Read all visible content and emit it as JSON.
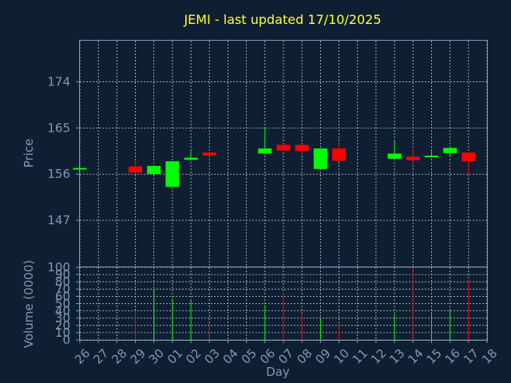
{
  "title": "JEMI - last updated 17/10/2025",
  "colors": {
    "background": "#0f1f33",
    "up": "#00ff00",
    "down": "#ff0000",
    "axis": "#7f99b2",
    "title": "#ffff33"
  },
  "chart_data": {
    "type": "candlestick",
    "title": "JEMI - last updated 17/10/2025",
    "xlabel": "Day",
    "price_axis": {
      "label": "Price",
      "range": [
        138,
        182
      ],
      "ticks": [
        147,
        156,
        165,
        174
      ]
    },
    "volume_axis": {
      "label": "Volume (0000)",
      "range": [
        0,
        100
      ],
      "ticks": [
        0,
        10,
        20,
        30,
        40,
        50,
        60,
        70,
        80,
        90,
        100
      ],
      "tick_labels": [
        "0",
        "10",
        "20",
        "30",
        "40",
        "50",
        "60",
        "70",
        "80",
        "90",
        "100"
      ]
    },
    "x_ticks": [
      "26",
      "27",
      "28",
      "29",
      "30",
      "01",
      "02",
      "03",
      "04",
      "05",
      "06",
      "07",
      "08",
      "09",
      "10",
      "11",
      "12",
      "13",
      "14",
      "15",
      "16",
      "17",
      "18"
    ],
    "candles": [
      {
        "day": "26",
        "open": 157.0,
        "high": 157.2,
        "low": 156.8,
        "close": 157.2,
        "volume": 0
      },
      {
        "day": "29",
        "open": 157.5,
        "high": 158.8,
        "low": 156.0,
        "close": 156.3,
        "volume": 40
      },
      {
        "day": "30",
        "open": 156.0,
        "high": 157.6,
        "low": 155.8,
        "close": 157.6,
        "volume": 67
      },
      {
        "day": "01",
        "open": 153.5,
        "high": 158.5,
        "low": 153.5,
        "close": 158.5,
        "volume": 57
      },
      {
        "day": "02",
        "open": 158.8,
        "high": 160.5,
        "low": 158.6,
        "close": 159.2,
        "volume": 54
      },
      {
        "day": "03",
        "open": 160.2,
        "high": 160.4,
        "low": 159.5,
        "close": 159.6,
        "volume": 23
      },
      {
        "day": "06",
        "open": 160.0,
        "high": 165.0,
        "low": 160.0,
        "close": 161.0,
        "volume": 48
      },
      {
        "day": "07",
        "open": 161.7,
        "high": 161.9,
        "low": 160.5,
        "close": 160.6,
        "volume": 65
      },
      {
        "day": "08",
        "open": 161.7,
        "high": 161.9,
        "low": 160.0,
        "close": 160.5,
        "volume": 37
      },
      {
        "day": "09",
        "open": 157.0,
        "high": 161.0,
        "low": 156.9,
        "close": 161.0,
        "volume": 29
      },
      {
        "day": "10",
        "open": 161.0,
        "high": 162.0,
        "low": 158.4,
        "close": 158.6,
        "volume": 20
      },
      {
        "day": "13",
        "open": 159.0,
        "high": 162.5,
        "low": 158.9,
        "close": 160.0,
        "volume": 36
      },
      {
        "day": "14",
        "open": 159.4,
        "high": 161.0,
        "low": 157.9,
        "close": 158.7,
        "volume": 99
      },
      {
        "day": "15",
        "open": 159.3,
        "high": 160.5,
        "low": 159.2,
        "close": 159.6,
        "volume": 36
      },
      {
        "day": "16",
        "open": 160.1,
        "high": 161.4,
        "low": 159.3,
        "close": 161.1,
        "volume": 43
      },
      {
        "day": "17",
        "open": 160.2,
        "high": 160.2,
        "low": 155.9,
        "close": 158.5,
        "volume": 82
      }
    ]
  }
}
